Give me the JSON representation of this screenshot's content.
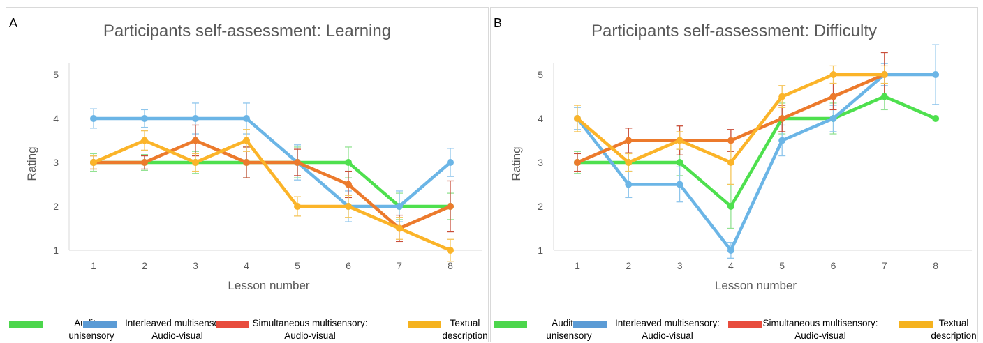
{
  "legend": [
    {
      "id": "auditory",
      "line1": "Auditory",
      "line2": "unisensory",
      "color": "#4cd64c"
    },
    {
      "id": "interleaved",
      "line1": "Interleaved multisensory:",
      "line2": "Audio-visual",
      "color": "#5b9bd5"
    },
    {
      "id": "simultaneous",
      "line1": "Simultaneous multisensory:",
      "line2": "Audio-visual",
      "color": "#e84c3d"
    },
    {
      "id": "textual",
      "line1": "Textual",
      "line2": "description",
      "color": "#f5b21e"
    }
  ],
  "chart_data": [
    {
      "letter": "A",
      "type": "line",
      "title": "Participants self-assessment:  Learning",
      "xlabel": "Lesson number",
      "ylabel": "Rating",
      "categories": [
        "1",
        "2",
        "3",
        "4",
        "5",
        "6",
        "7",
        "8"
      ],
      "yticks": [
        "1",
        "2",
        "3",
        "4",
        "5"
      ],
      "ylim": [
        1,
        5
      ],
      "series": [
        {
          "name": "Auditory unisensory",
          "color": "#4ee04e",
          "errcolor": "#93e293",
          "values": [
            3,
            3,
            3,
            3,
            3,
            3,
            2,
            2
          ],
          "err": [
            0.2,
            0.18,
            0.25,
            0.35,
            0.35,
            0.35,
            0.3,
            0.3
          ]
        },
        {
          "name": "Interleaved multisensory: Audio-visual",
          "color": "#6bb5e6",
          "errcolor": "#8fc6ec",
          "values": [
            4,
            4,
            4,
            4,
            3,
            2,
            2,
            3
          ],
          "err": [
            0.22,
            0.2,
            0.35,
            0.35,
            0.4,
            0.35,
            0.35,
            0.32
          ]
        },
        {
          "name": "Simultaneous multisensory: Audio-visual",
          "color": "#ec7a2c",
          "errcolor": "#c94f3a",
          "values": [
            3,
            3,
            3.5,
            3,
            3,
            2.5,
            1.5,
            2
          ],
          "err": [
            0.15,
            0.15,
            0.35,
            0.35,
            0.3,
            0.3,
            0.3,
            0.58
          ]
        },
        {
          "name": "Textual description",
          "color": "#fbb429",
          "errcolor": "#f5c55a",
          "values": [
            3,
            3.5,
            3,
            3.5,
            2,
            2,
            1.5,
            1
          ],
          "err": [
            0.15,
            0.22,
            0.2,
            0.25,
            0.22,
            0.25,
            0.25,
            0.25
          ]
        }
      ]
    },
    {
      "letter": "B",
      "type": "line",
      "title": "Participants self-assessment:  Difficulty",
      "xlabel": "Lesson number",
      "ylabel": "Rating",
      "categories": [
        "1",
        "2",
        "3",
        "4",
        "5",
        "6",
        "7",
        "8"
      ],
      "yticks": [
        "1",
        "2",
        "3",
        "4",
        "5"
      ],
      "ylim": [
        1,
        5
      ],
      "series": [
        {
          "name": "Auditory unisensory",
          "color": "#4ee04e",
          "errcolor": "#93e293",
          "values": [
            3,
            3,
            3,
            2,
            4,
            4,
            4.5,
            4
          ],
          "err": [
            0.25,
            0.2,
            0.3,
            0.5,
            0.35,
            0.35,
            0.3,
            0
          ]
        },
        {
          "name": "Interleaved multisensory: Audio-visual",
          "color": "#6bb5e6",
          "errcolor": "#8fc6ec",
          "values": [
            4,
            2.5,
            2.5,
            1,
            3.5,
            4,
            5,
            5
          ],
          "err": [
            0.25,
            0.3,
            0.4,
            0.18,
            0.35,
            0.3,
            0.25,
            0.68
          ]
        },
        {
          "name": "Simultaneous multisensory: Audio-visual",
          "color": "#ec7a2c",
          "errcolor": "#c94f3a",
          "values": [
            3,
            3.5,
            3.5,
            3.5,
            4,
            4.5,
            5,
            null
          ],
          "err": [
            0.2,
            0.28,
            0.33,
            0.25,
            0.3,
            0.3,
            0.5,
            0
          ]
        },
        {
          "name": "Textual description",
          "color": "#fbb429",
          "errcolor": "#f5c55a",
          "values": [
            4,
            3,
            3.5,
            3,
            4.5,
            5,
            5,
            null
          ],
          "err": [
            0.3,
            0.2,
            0.2,
            0.5,
            0.25,
            0.2,
            0.2,
            0
          ]
        }
      ]
    }
  ]
}
